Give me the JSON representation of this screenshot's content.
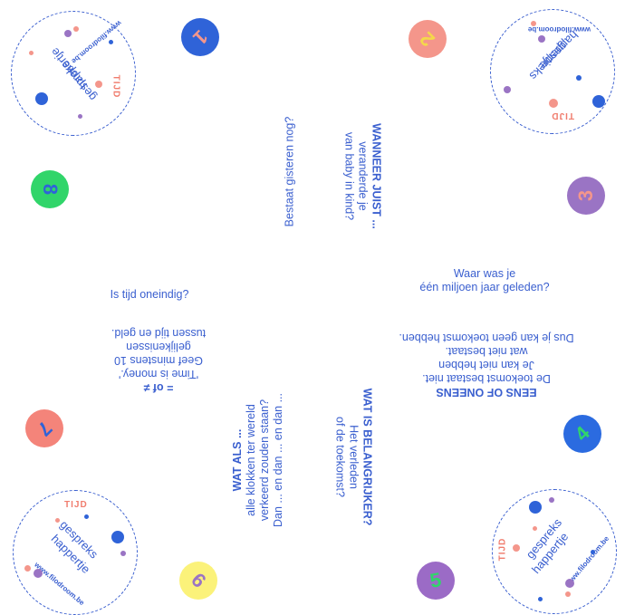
{
  "corners": {
    "url": "www.filodroom.be",
    "tijd": "TIJD",
    "brand_line1": "gespreks",
    "brand_line2": "happertje"
  },
  "badges": {
    "b1": "1",
    "b2": "2",
    "b3": "3",
    "b4": "4",
    "b5": "5",
    "b6": "6",
    "b7": "7",
    "b8": "8"
  },
  "colors": {
    "blue": "#2f63d8",
    "salmon": "#f4968b",
    "purple": "#9a74c4",
    "teal_blue": "#2b6be0",
    "violet": "#9b6bc6",
    "yellow": "#fbf27a",
    "coral": "#f4847a",
    "green": "#31d56a"
  },
  "cards": {
    "top_title": "WANNEER JUIST ...",
    "top_line1": "veranderde je",
    "top_line2": "van baby in kind?",
    "top_q2": "Bestaat gisteren nog?",
    "right_q1_line1": "Waar was je",
    "right_q1_line2": "één miljoen jaar geleden?",
    "right_title": "EENS OF ONEENS",
    "right_line1": "De toekomst bestaat niet.",
    "right_line2": "Je kan niet hebben",
    "right_line3": "wat niet bestaat.",
    "right_line4": "Dus je kan geen toekomst hebben.",
    "bottom_title": "WAT IS BELANGRIJKER?",
    "bottom_line1": "Het verleden",
    "bottom_line2": "of de toekomst?",
    "bottom_q2_title": "WAT ALS ...",
    "bottom_q2_line1": "alle klokken ter wereld",
    "bottom_q2_line2": "verkeerd zouden staan?",
    "bottom_q2_line3": "Dan ... en dan ... en dan ...",
    "left_q1": "Is tijd oneindig?",
    "left_title": "= of ≠",
    "left_line1": "'Time is money.'",
    "left_line2": "Geef minstens 10",
    "left_line3": "gelijkenissen",
    "left_line4": "tussen tijd en geld."
  }
}
